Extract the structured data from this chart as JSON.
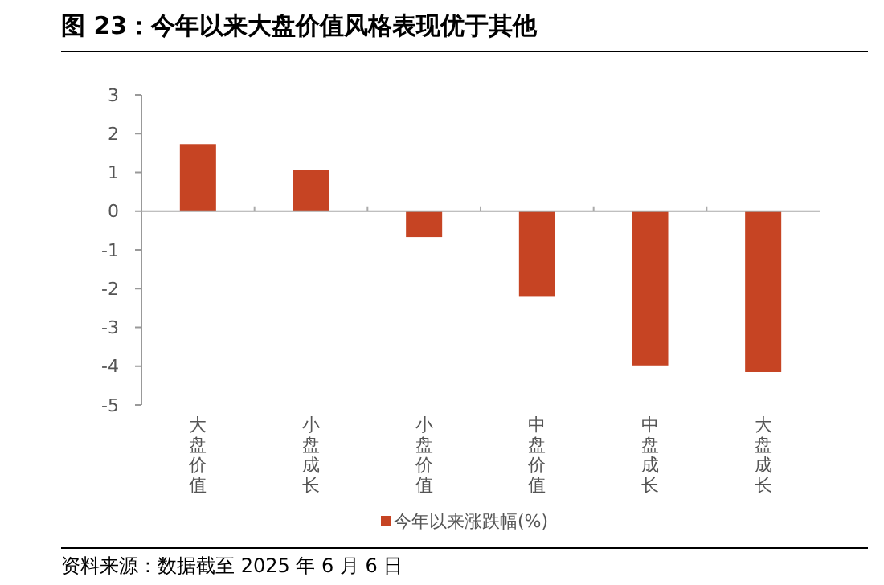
{
  "chart_data": {
    "type": "bar",
    "title": "图 23：今年以来大盘价值风格表现优于其他",
    "categories": [
      "大盘价值",
      "小盘成长",
      "小盘价值",
      "中盘价值",
      "中盘成长",
      "大盘成长"
    ],
    "series": [
      {
        "name": "今年以来涨跌幅(%)",
        "color": "#c64423",
        "values": [
          1.73,
          1.07,
          -0.67,
          -2.19,
          -3.98,
          -4.15
        ]
      }
    ],
    "ylim": [
      -5,
      3
    ],
    "yticks": [
      -5,
      -4,
      -3,
      -2,
      -1,
      0,
      1,
      2,
      3
    ],
    "legend": "bottom",
    "annotations": [
      "资料来源：数据截至 2025 年 6 月 6 日"
    ]
  }
}
